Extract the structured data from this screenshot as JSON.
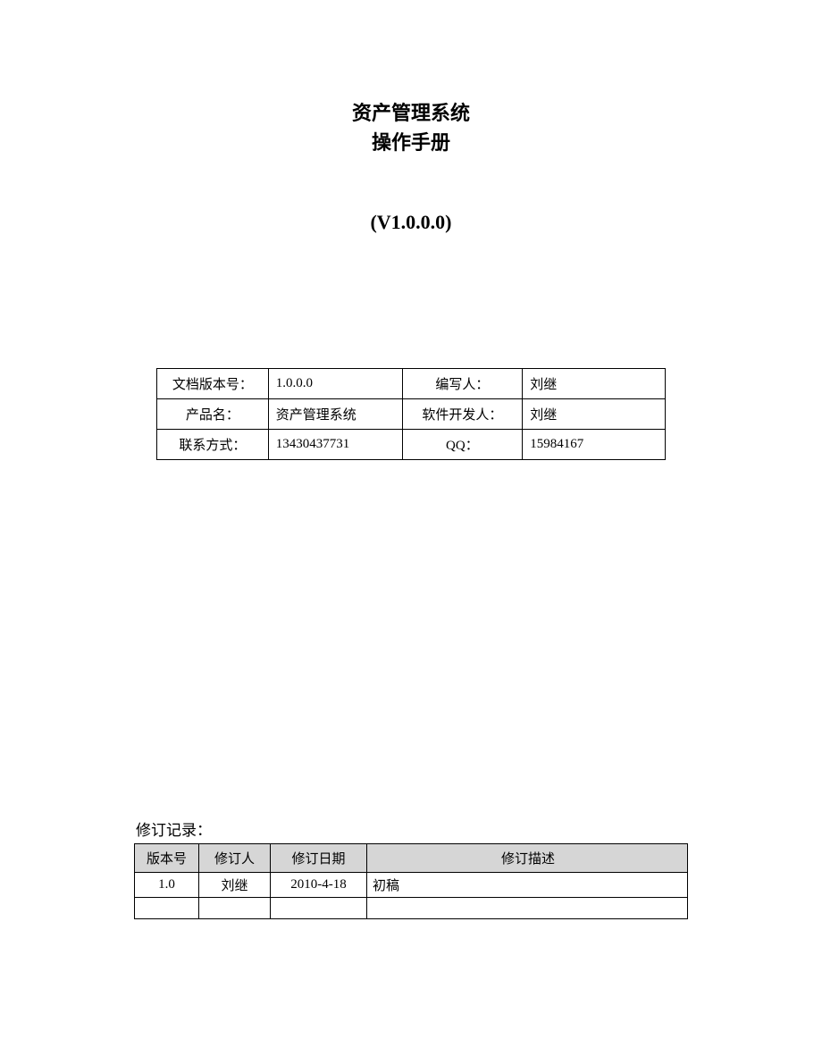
{
  "title": {
    "line1": "资产管理系统",
    "line2": "操作手册"
  },
  "version": "(V1.0.0.0)",
  "info_table": {
    "rows": [
      {
        "label1": "文档版本号：",
        "value1": "1.0.0.0",
        "label2": "编写人：",
        "value2": "刘继"
      },
      {
        "label1": "产品名：",
        "value1": "资产管理系统",
        "label2": "软件开发人：",
        "value2": "刘继"
      },
      {
        "label1": "联系方式：",
        "value1": "13430437731",
        "label2": "QQ：",
        "value2": "15984167"
      }
    ]
  },
  "revision": {
    "heading": "修订记录：",
    "columns": [
      "版本号",
      "修订人",
      "修订日期",
      "修订描述"
    ],
    "rows": [
      {
        "version": "1.0",
        "person": "刘继",
        "date": "2010-4-18",
        "desc": "初稿"
      },
      {
        "version": "",
        "person": "",
        "date": "",
        "desc": ""
      }
    ]
  },
  "styles": {
    "page_bg": "#ffffff",
    "text_color": "#000000",
    "border_color": "#000000",
    "header_bg": "#d6d6d6",
    "title_fontsize": 22,
    "body_fontsize": 15,
    "revision_title_fontsize": 17
  }
}
